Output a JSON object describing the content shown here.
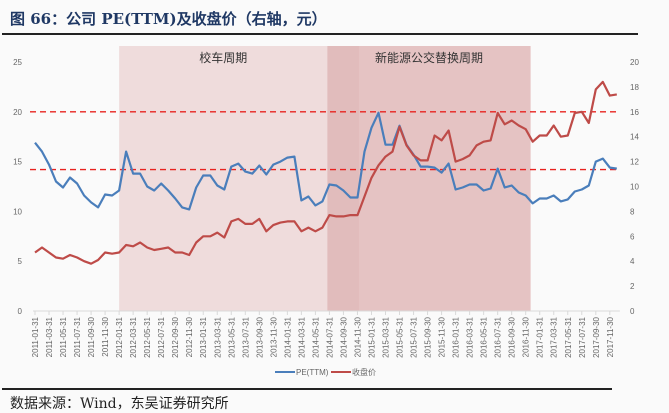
{
  "title": "图 66：公司 PE(TTM)及收盘价（右轴，元）",
  "source": "数据来源：Wind，东吴证券研究所",
  "chart_data": {
    "type": "line",
    "title": "图 66：公司 PE(TTM)及收盘价（右轴，元）",
    "x_start": "2011-01",
    "x_label_every": 2,
    "x_tick_labels": [
      "2011-01-31",
      "2011-03-31",
      "2011-05-31",
      "2011-07-31",
      "2011-09-30",
      "2011-11-30",
      "2012-01-31",
      "2012-03-31",
      "2012-05-31",
      "2012-07-31",
      "2012-09-30",
      "2012-11-30",
      "2013-01-31",
      "2013-03-31",
      "2013-05-31",
      "2013-07-31",
      "2013-09-30",
      "2013-11-30",
      "2014-01-31",
      "2014-03-31",
      "2014-05-31",
      "2014-07-31",
      "2014-09-30",
      "2014-11-30",
      "2015-01-31",
      "2015-03-31",
      "2015-05-31",
      "2015-07-31",
      "2015-09-30",
      "2015-11-30",
      "2016-01-31",
      "2016-03-31",
      "2016-05-31",
      "2016-07-31",
      "2016-09-30",
      "2016-11-30",
      "2017-01-31",
      "2017-03-31",
      "2017-05-31",
      "2017-07-31",
      "2017-09-30",
      "2017-11-30"
    ],
    "y_left": {
      "range": [
        0,
        25
      ],
      "ticks": [
        "0",
        "5",
        "10",
        "15",
        "20",
        "25"
      ]
    },
    "y_right": {
      "range": [
        0,
        20
      ],
      "ticks": [
        "0",
        "2",
        "4",
        "6",
        "8",
        "10",
        "12",
        "14",
        "16",
        "18",
        "20"
      ],
      "label": "右轴，元"
    },
    "series": [
      {
        "name": "PE(TTM)",
        "axis": "left",
        "color": "#4a7ebb",
        "values": [
          16.9,
          16.0,
          14.7,
          13.0,
          12.4,
          13.4,
          12.8,
          11.6,
          10.9,
          10.4,
          11.7,
          11.6,
          12.1,
          16.0,
          13.8,
          13.8,
          12.5,
          12.1,
          12.8,
          12.1,
          11.3,
          10.4,
          10.2,
          12.4,
          13.6,
          13.6,
          12.6,
          12.2,
          14.5,
          14.8,
          14.0,
          13.8,
          14.6,
          13.7,
          14.7,
          15.0,
          15.4,
          15.5,
          11.1,
          11.5,
          10.6,
          11.0,
          12.7,
          12.6,
          12.1,
          11.4,
          11.4,
          16.0,
          18.4,
          19.9,
          16.7,
          16.7,
          18.6,
          16.7,
          15.7,
          14.5,
          14.5,
          14.4,
          13.9,
          14.8,
          12.2,
          12.4,
          12.7,
          12.7,
          12.1,
          12.3,
          14.3,
          12.4,
          12.6,
          11.9,
          11.6,
          10.8,
          11.3,
          11.3,
          11.6,
          11.0,
          11.2,
          12.0,
          12.2,
          12.6,
          15.0,
          15.3,
          14.4,
          14.3
        ]
      },
      {
        "name": "收盘价",
        "axis": "right",
        "color": "#be4b48",
        "values": [
          4.7,
          5.1,
          4.7,
          4.3,
          4.2,
          4.5,
          4.3,
          4.0,
          3.8,
          4.1,
          4.7,
          4.6,
          4.7,
          5.3,
          5.2,
          5.5,
          5.1,
          4.9,
          5.0,
          5.1,
          4.7,
          4.7,
          4.5,
          5.5,
          6.0,
          6.0,
          6.3,
          5.9,
          7.2,
          7.4,
          7.0,
          7.0,
          7.4,
          6.4,
          6.9,
          7.1,
          7.2,
          7.2,
          6.4,
          6.7,
          6.4,
          6.7,
          7.7,
          7.6,
          7.6,
          7.7,
          7.7,
          9.2,
          10.7,
          11.7,
          12.4,
          12.8,
          14.8,
          13.3,
          12.5,
          12.1,
          12.1,
          14.1,
          13.7,
          14.5,
          12.0,
          12.2,
          12.5,
          13.3,
          13.6,
          13.7,
          15.9,
          15.0,
          15.3,
          14.9,
          14.6,
          13.6,
          14.1,
          14.1,
          14.9,
          14.0,
          14.1,
          15.9,
          16.0,
          15.1,
          17.8,
          18.4,
          17.3,
          17.4
        ]
      }
    ],
    "reference_lines": [
      {
        "axis": "left",
        "value": 20,
        "color": "#e8231f",
        "style": "dashed"
      },
      {
        "axis": "left",
        "value": 14.2,
        "color": "#e8231f",
        "style": "dashed"
      }
    ],
    "shaded_periods": [
      {
        "label": "校车周期",
        "start_index": 12,
        "end_index": 41.7,
        "color": "#efdcdc"
      },
      {
        "label": "新能源公交替换周期",
        "start_index": 41.7,
        "end_index": 70.7,
        "color": "#e5c3c3"
      }
    ],
    "legend_position": "bottom-center"
  }
}
